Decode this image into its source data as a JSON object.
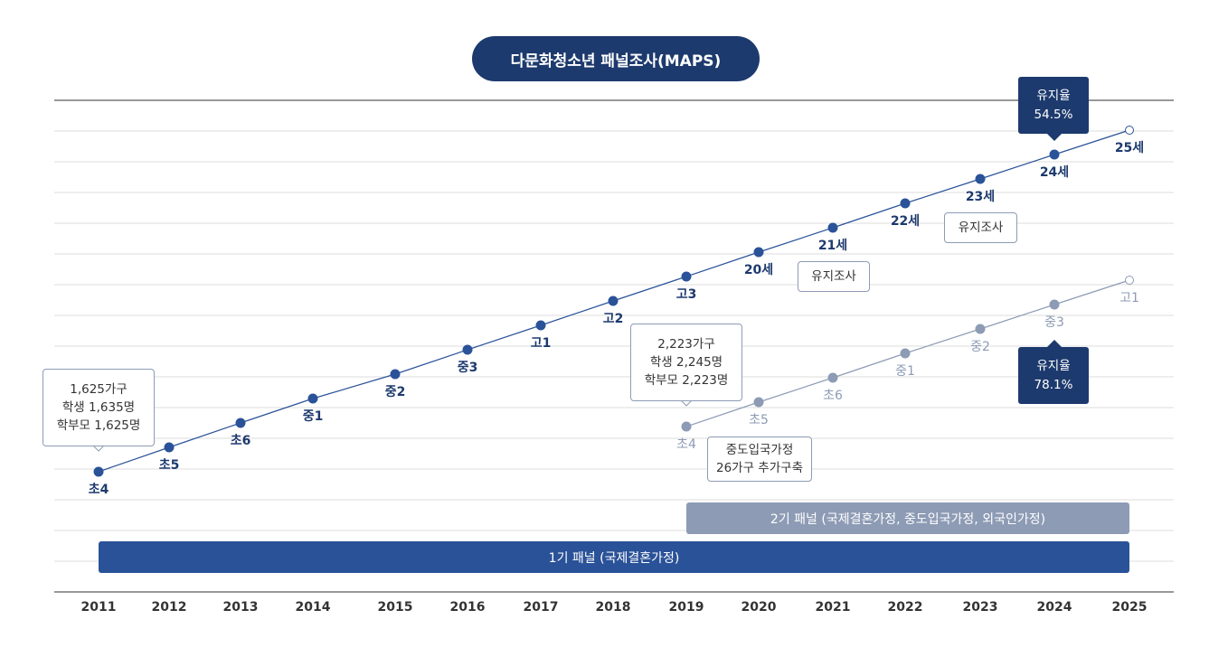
{
  "title": "다문화청소년 패널조사(MAPS)",
  "years": [
    "2011",
    "2012",
    "2013",
    "2014",
    "2015",
    "2016",
    "2017",
    "2018",
    "2019",
    "2020",
    "2021",
    "2022",
    "2023",
    "2024",
    "2025"
  ],
  "panel1": {
    "color": "#2a5298",
    "labels": [
      "초4",
      "초5",
      "초6",
      "중1",
      "중2",
      "중3",
      "고1",
      "고2",
      "고3",
      "20세",
      "21세",
      "22세",
      "23세",
      "24세",
      "25세"
    ],
    "start_year": "2011",
    "bar_label": "1기 패널 (국제결혼가정)",
    "info": [
      "1,625가구",
      "학생 1,635명",
      "학부모 1,625명"
    ],
    "retention": {
      "label": "유지율",
      "value": "54.5%"
    },
    "survey_note": "유지조사"
  },
  "panel2": {
    "color": "#8d9bb5",
    "labels": [
      "초4",
      "초5",
      "초6",
      "중1",
      "중2",
      "중3",
      "고1"
    ],
    "start_year": "2019",
    "bar_label": "2기 패널 (국제결혼가정, 중도입국가정, 외국인가정)",
    "info": [
      "2,223가구",
      "학생 2,245명",
      "학부모 2,223명"
    ],
    "note": [
      "중도입국가정",
      "26가구 추가구축"
    ],
    "retention": {
      "label": "유지율",
      "value": "78.1%"
    },
    "survey_note": "유지조사"
  }
}
